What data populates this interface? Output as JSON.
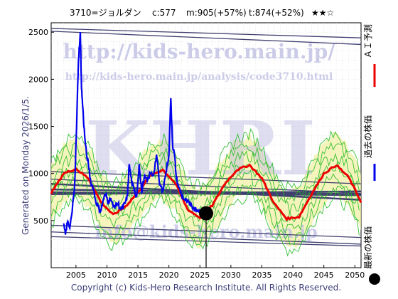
{
  "header": {
    "title": "3710=ジョルダン",
    "current": "c:577",
    "median": "m:905(+57%)",
    "target": "t:874(+52%)",
    "stars": "★★☆"
  },
  "side_text": "Generated on Monday 2026/1/5.",
  "copyright": "Copyright (c) Kids-Hero Research Institute. All Rights Reserved.",
  "watermarks": {
    "big": "KHRI",
    "url1": "http://kids-hero.main.jp/",
    "url2": "http://kids-hero.main.jp/analysis/code3710.html",
    "mail": "info@kids-hero.main.jp"
  },
  "legend": {
    "ai": "ＡＩ予測",
    "past": "過去の株価",
    "latest": "最新の株価"
  },
  "colors": {
    "ai_line": "#ee0000",
    "past_line": "#0000ee",
    "green": "#22bb22",
    "band": "#f0f0a0",
    "trend": "#404070",
    "latest_dot": "#000000"
  },
  "chart_data": {
    "type": "line",
    "xlim": [
      2001,
      2051
    ],
    "ylim": [
      0,
      2600
    ],
    "xticks": [
      2005,
      2010,
      2015,
      2020,
      2025,
      2030,
      2035,
      2040,
      2045,
      2050
    ],
    "yticks": [
      500,
      1000,
      1500,
      2000,
      2500
    ],
    "grid": true,
    "latest": {
      "x": 2026.0,
      "y": 577
    },
    "series": [
      {
        "name": "過去の株価",
        "x": [
          2003.0,
          2003.3,
          2003.6,
          2004.0,
          2004.4,
          2004.8,
          2005.1,
          2005.4,
          2005.7,
          2005.9,
          2006.1,
          2006.4,
          2006.7,
          2007.0,
          2007.4,
          2007.8,
          2008.2,
          2008.6,
          2009.0,
          2009.4,
          2009.8,
          2010.2,
          2010.6,
          2011.0,
          2011.4,
          2011.8,
          2012.2,
          2012.6,
          2013.0,
          2013.3,
          2013.6,
          2014.0,
          2014.4,
          2014.8,
          2015.2,
          2015.6,
          2016.0,
          2016.5,
          2017.0,
          2017.5,
          2018.0,
          2018.5,
          2019.0,
          2019.5,
          2020.0,
          2020.3,
          2020.6,
          2020.9,
          2021.2,
          2021.6,
          2022.0,
          2022.5,
          2023.0,
          2023.5,
          2024.0,
          2024.5,
          2025.0
        ],
        "y": [
          470,
          350,
          480,
          420,
          600,
          900,
          1500,
          2200,
          2500,
          1900,
          1700,
          1400,
          1200,
          1100,
          900,
          850,
          700,
          650,
          600,
          720,
          780,
          700,
          740,
          650,
          660,
          680,
          620,
          640,
          700,
          760,
          1100,
          900,
          820,
          760,
          1100,
          800,
          960,
          920,
          1000,
          980,
          1200,
          880,
          820,
          1000,
          1200,
          1800,
          1300,
          1200,
          950,
          850,
          780,
          720,
          700,
          650,
          640,
          610,
          620
        ]
      },
      {
        "name": "ＡＩ予測",
        "x": [
          2001.0,
          2003.0,
          2005.0,
          2007.0,
          2009.0,
          2011.0,
          2013.0,
          2015.0,
          2017.0,
          2019.0,
          2021.0,
          2023.0,
          2025.0,
          2027.0,
          2029.0,
          2031.0,
          2033.0,
          2035.0,
          2037.0,
          2039.0,
          2041.0,
          2043.0,
          2045.0,
          2047.0,
          2049.0,
          2051.0
        ],
        "y": [
          790,
          1000,
          1050,
          950,
          700,
          560,
          650,
          800,
          980,
          1040,
          900,
          620,
          530,
          660,
          890,
          1040,
          1090,
          950,
          680,
          520,
          540,
          780,
          1000,
          1090,
          960,
          700
        ]
      }
    ]
  }
}
